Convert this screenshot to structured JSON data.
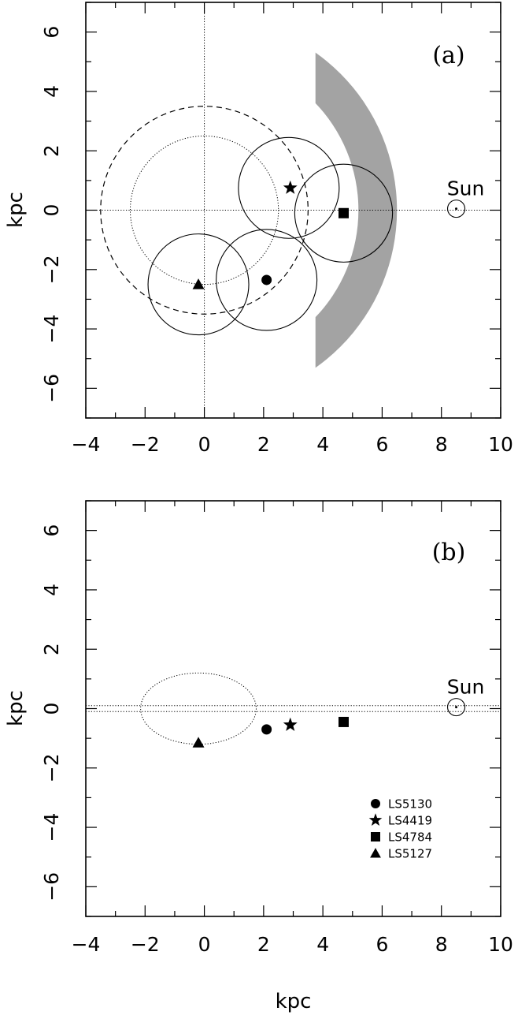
{
  "chart_data": [
    {
      "type": "scatter",
      "panel_label": "(a)",
      "xlabel": "",
      "ylabel": "kpc",
      "xlim": [
        -4,
        10
      ],
      "ylim": [
        -7,
        7
      ],
      "xticks": [
        -4,
        -2,
        0,
        2,
        4,
        6,
        8,
        10
      ],
      "yticks": [
        -6,
        -4,
        -2,
        0,
        2,
        4,
        6
      ],
      "sun": {
        "label": "Sun",
        "x": 8.5,
        "y": 0.05
      },
      "points": [
        {
          "name": "LS5130",
          "marker": "circle",
          "x": 2.1,
          "y": -2.35
        },
        {
          "name": "LS4419",
          "marker": "star",
          "x": 2.9,
          "y": 0.75
        },
        {
          "name": "LS4784",
          "marker": "square",
          "x": 4.7,
          "y": -0.1
        },
        {
          "name": "LS5127",
          "marker": "triangle",
          "x": -0.2,
          "y": -2.5
        }
      ],
      "error_circles": [
        {
          "cx": 2.85,
          "cy": 0.75,
          "r": 1.7
        },
        {
          "cx": 4.7,
          "cy": -0.1,
          "r": 1.65
        },
        {
          "cx": -0.2,
          "cy": -2.5,
          "r": 1.7
        },
        {
          "cx": 2.1,
          "cy": -2.35,
          "r": 1.7
        }
      ],
      "dashed_circle": {
        "cx": 0,
        "cy": 0,
        "r": 3.5
      },
      "dotted_circle": {
        "cx": 0,
        "cy": 0,
        "r": 2.5
      },
      "shaded_arc": {
        "cx": 0,
        "cy": 0,
        "r_inner": 5.2,
        "r_outer": 6.5,
        "y_min": -5.35,
        "y_max": 5.35,
        "x_min": 3.75,
        "color": "#a3a3a3"
      },
      "guide_lines": {
        "x": 0,
        "y": 0
      }
    },
    {
      "type": "scatter",
      "panel_label": "(b)",
      "xlabel": "kpc",
      "ylabel": "kpc",
      "xlim": [
        -4,
        10
      ],
      "ylim": [
        -7,
        7
      ],
      "xticks": [
        -4,
        -2,
        0,
        2,
        4,
        6,
        8,
        10
      ],
      "yticks": [
        -6,
        -4,
        -2,
        0,
        2,
        4,
        6
      ],
      "sun": {
        "label": "Sun",
        "x": 8.5,
        "y": 0.05
      },
      "points": [
        {
          "name": "LS5130",
          "marker": "circle",
          "x": 2.1,
          "y": -0.7
        },
        {
          "name": "LS4419",
          "marker": "star",
          "x": 2.9,
          "y": -0.55
        },
        {
          "name": "LS4784",
          "marker": "square",
          "x": 4.7,
          "y": -0.45
        },
        {
          "name": "LS5127",
          "marker": "triangle",
          "x": -0.2,
          "y": -1.15
        }
      ],
      "dotted_ellipse": {
        "cx": -0.2,
        "cy": 0,
        "rx": 1.95,
        "ry": 1.2
      },
      "band": {
        "y1": -0.1,
        "y2": 0.1
      },
      "legend": [
        {
          "marker": "circle",
          "label": "LS5130"
        },
        {
          "marker": "star",
          "label": "LS4419"
        },
        {
          "marker": "square",
          "label": "LS4784"
        },
        {
          "marker": "triangle",
          "label": "LS5127"
        }
      ],
      "legend_position": "lower-right"
    }
  ]
}
